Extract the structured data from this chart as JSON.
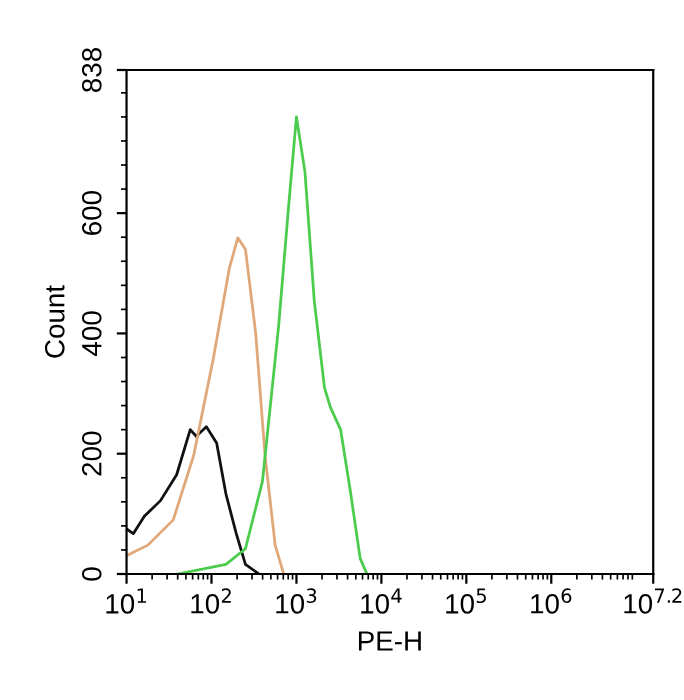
{
  "chart_data": {
    "type": "line",
    "xlabel": "PE-H",
    "ylabel": "Count",
    "log": "x",
    "grid": false,
    "legend": false,
    "marker": "none",
    "line_style": "solid",
    "xlim": [
      10,
      15848932
    ],
    "ylim": [
      0,
      838
    ],
    "xticks": [
      {
        "value": 10,
        "label": "10$^{1}$"
      },
      {
        "value": 100,
        "label": "10$^{2}$"
      },
      {
        "value": 1000,
        "label": "10$^{3}$"
      },
      {
        "value": 10000,
        "label": "10$^{4}$"
      },
      {
        "value": 100000,
        "label": "10$^{5}$"
      },
      {
        "value": 1000000,
        "label": "10$^{6}$"
      },
      {
        "value": 15848932,
        "label": "10$^{7.2}$"
      }
    ],
    "yticks": [
      0,
      200,
      400,
      600,
      838
    ],
    "series": [
      {
        "color": "#111111",
        "x": [
          10.2,
          12,
          16.2,
          25.1,
          38.9,
          56.2,
          66.1,
          87.1,
          115,
          148,
          195,
          251,
          363
        ],
        "values": [
          74,
          67,
          96,
          122,
          165,
          240,
          229,
          245,
          218,
          133,
          68,
          16,
          0
        ]
      },
      {
        "color": "#e0a878",
        "x": [
          10.2,
          17.8,
          35.5,
          61.7,
          105,
          162,
          204,
          251,
          331,
          427,
          562,
          708
        ],
        "values": [
          31,
          48,
          90,
          197,
          358,
          508,
          559,
          540,
          401,
          197,
          48,
          0
        ]
      },
      {
        "color": "#4ccc4c",
        "x": [
          39.8,
          148,
          251,
          398,
          617,
          813,
          1000,
          1259,
          1622,
          2138,
          2512,
          3311,
          4365,
          5623,
          6761
        ],
        "values": [
          0,
          16,
          42,
          154,
          412,
          615,
          760,
          669,
          454,
          310,
          277,
          240,
          133,
          26,
          0
        ]
      }
    ]
  }
}
